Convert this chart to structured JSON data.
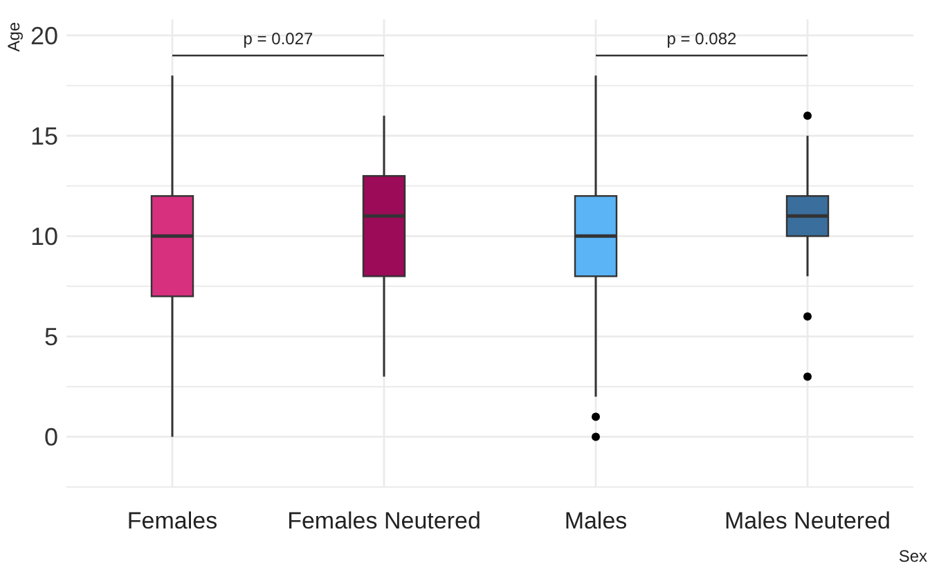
{
  "chart_data": {
    "type": "box",
    "xlabel": "Sex",
    "ylabel": "Age",
    "categories": [
      "Females",
      "Females Neutered",
      "Males",
      "Males Neutered"
    ],
    "colors": [
      "#d6307f",
      "#9c0b58",
      "#5ab4f5",
      "#3a6e9c"
    ],
    "boxes": [
      {
        "low": 0,
        "q1": 7,
        "median": 10,
        "q3": 12,
        "high": 18
      },
      {
        "low": 3,
        "q1": 8,
        "median": 11,
        "q3": 13,
        "high": 16
      },
      {
        "low": 2,
        "q1": 8,
        "median": 10,
        "q3": 12,
        "high": 18,
        "outliers": [
          1,
          0
        ]
      },
      {
        "low": 8,
        "q1": 10,
        "median": 11,
        "q3": 12,
        "high": 15,
        "outliers": [
          16,
          6,
          3
        ]
      }
    ],
    "annotations": [
      "p = 0.027",
      "p = 0.082"
    ],
    "ylim": [
      -2.5,
      20.8
    ],
    "yticks": [
      {
        "value": -2.5,
        "label": null
      },
      0,
      {
        "value": 2.5,
        "label": null
      },
      5,
      {
        "value": 7.5,
        "label": null
      },
      10,
      {
        "value": 12.5,
        "label": null
      },
      15,
      {
        "value": 17.5,
        "label": null
      },
      20
    ],
    "grid": true
  }
}
